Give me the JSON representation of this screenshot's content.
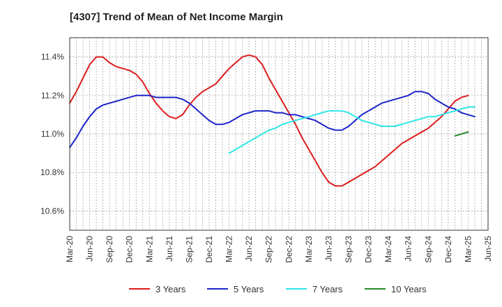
{
  "chart_data": {
    "type": "line",
    "title": "[4307]  Trend of Mean of Net Income Margin",
    "xlabel": "",
    "ylabel": "",
    "x_ticks": [
      "Mar-20",
      "Jun-20",
      "Sep-20",
      "Dec-20",
      "Mar-21",
      "Jun-21",
      "Sep-21",
      "Dec-21",
      "Mar-22",
      "Jun-22",
      "Sep-22",
      "Dec-22",
      "Mar-23",
      "Jun-23",
      "Sep-23",
      "Dec-23",
      "Mar-24",
      "Jun-24",
      "Sep-24",
      "Dec-24",
      "Mar-25",
      "Jun-25"
    ],
    "y_ticks": [
      "10.6%",
      "10.8%",
      "11.0%",
      "11.2%",
      "11.4%"
    ],
    "y_tick_values": [
      10.6,
      10.8,
      11.0,
      11.2,
      11.4
    ],
    "ylim": [
      10.5,
      11.5
    ],
    "grid": true,
    "legend_position": "bottom",
    "series": [
      {
        "name": "3 Years",
        "color": "#dd1c1c",
        "start": "Mar-20",
        "values": [
          11.16,
          11.22,
          11.29,
          11.36,
          11.4,
          11.4,
          11.37,
          11.35,
          11.34,
          11.33,
          11.31,
          11.27,
          11.21,
          11.16,
          11.12,
          11.09,
          11.08,
          11.1,
          11.15,
          11.19,
          11.22,
          11.24,
          11.26,
          11.3,
          11.34,
          11.37,
          11.4,
          11.41,
          11.4,
          11.36,
          11.29,
          11.23,
          11.17,
          11.11,
          11.05,
          10.98,
          10.92,
          10.86,
          10.8,
          10.75,
          10.73,
          10.73,
          10.75,
          10.77,
          10.79,
          10.81,
          10.83,
          10.86,
          10.89,
          10.92,
          10.95,
          10.97,
          10.99,
          11.01,
          11.03,
          11.06,
          11.09,
          11.13,
          11.17,
          11.19,
          11.2
        ]
      },
      {
        "name": "5 Years",
        "color": "#1d24c9",
        "start": "Mar-20",
        "values": [
          10.93,
          10.98,
          11.04,
          11.09,
          11.13,
          11.15,
          11.16,
          11.17,
          11.18,
          11.19,
          11.2,
          11.2,
          11.2,
          11.19,
          11.19,
          11.19,
          11.19,
          11.18,
          11.16,
          11.13,
          11.1,
          11.07,
          11.05,
          11.05,
          11.06,
          11.08,
          11.1,
          11.11,
          11.12,
          11.12,
          11.12,
          11.11,
          11.11,
          11.1,
          11.1,
          11.09,
          11.08,
          11.07,
          11.05,
          11.03,
          11.02,
          11.02,
          11.04,
          11.07,
          11.1,
          11.12,
          11.14,
          11.16,
          11.17,
          11.18,
          11.19,
          11.2,
          11.22,
          11.22,
          11.21,
          11.18,
          11.16,
          11.14,
          11.13,
          11.11,
          11.1,
          11.09
        ]
      },
      {
        "name": "7 Years",
        "color": "#2ee6e6",
        "start": "Mar-22",
        "values": [
          10.9,
          10.92,
          10.94,
          10.96,
          10.98,
          11.0,
          11.02,
          11.03,
          11.05,
          11.06,
          11.07,
          11.08,
          11.09,
          11.1,
          11.11,
          11.12,
          11.12,
          11.12,
          11.11,
          11.09,
          11.07,
          11.06,
          11.05,
          11.04,
          11.04,
          11.04,
          11.05,
          11.06,
          11.07,
          11.08,
          11.09,
          11.09,
          11.1,
          11.11,
          11.12,
          11.13,
          11.14,
          11.14
        ]
      },
      {
        "name": "10 Years",
        "color": "#2a8a2a",
        "start": "Jan-25",
        "values": [
          10.99,
          11.0,
          11.01
        ]
      }
    ]
  }
}
